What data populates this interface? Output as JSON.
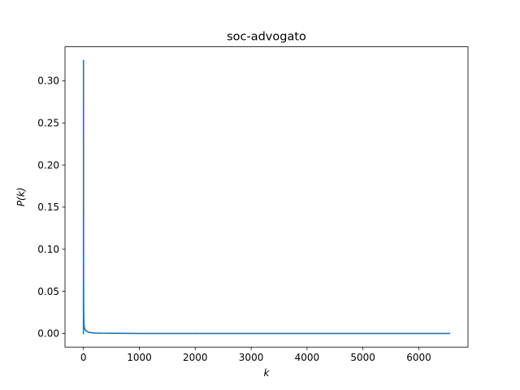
{
  "chart_data": {
    "type": "line",
    "title": "soc-advogato",
    "xlabel": "k",
    "ylabel": "P(k)",
    "xlim": [
      -330,
      6880
    ],
    "ylim": [
      -0.0162,
      0.3404
    ],
    "xticks": [
      0,
      1000,
      2000,
      3000,
      4000,
      5000,
      6000
    ],
    "xtick_labels": [
      "0",
      "1000",
      "2000",
      "3000",
      "4000",
      "5000",
      "6000"
    ],
    "yticks": [
      0.0,
      0.05,
      0.1,
      0.15,
      0.2,
      0.25,
      0.3
    ],
    "ytick_labels": [
      "0.00",
      "0.05",
      "0.10",
      "0.15",
      "0.20",
      "0.25",
      "0.30"
    ],
    "grid": false,
    "legend": "none",
    "series": [
      {
        "color": "#1f77b4",
        "x": [
          0,
          1,
          2,
          3,
          4,
          5,
          6,
          8,
          10,
          15,
          20,
          30,
          50,
          80,
          100,
          150,
          200,
          300,
          500,
          800,
          1000,
          2000,
          3000,
          4000,
          5000,
          6000,
          6550
        ],
        "y": [
          0.0,
          0.324,
          0.12,
          0.06,
          0.04,
          0.03,
          0.022,
          0.015,
          0.011,
          0.008,
          0.006,
          0.0045,
          0.003,
          0.0018,
          0.0013,
          0.0008,
          0.0005,
          0.0003,
          0.0002,
          0.0001,
          0.0,
          0.0,
          0.0,
          0.0,
          0.0,
          0.0,
          0.0
        ]
      }
    ]
  }
}
